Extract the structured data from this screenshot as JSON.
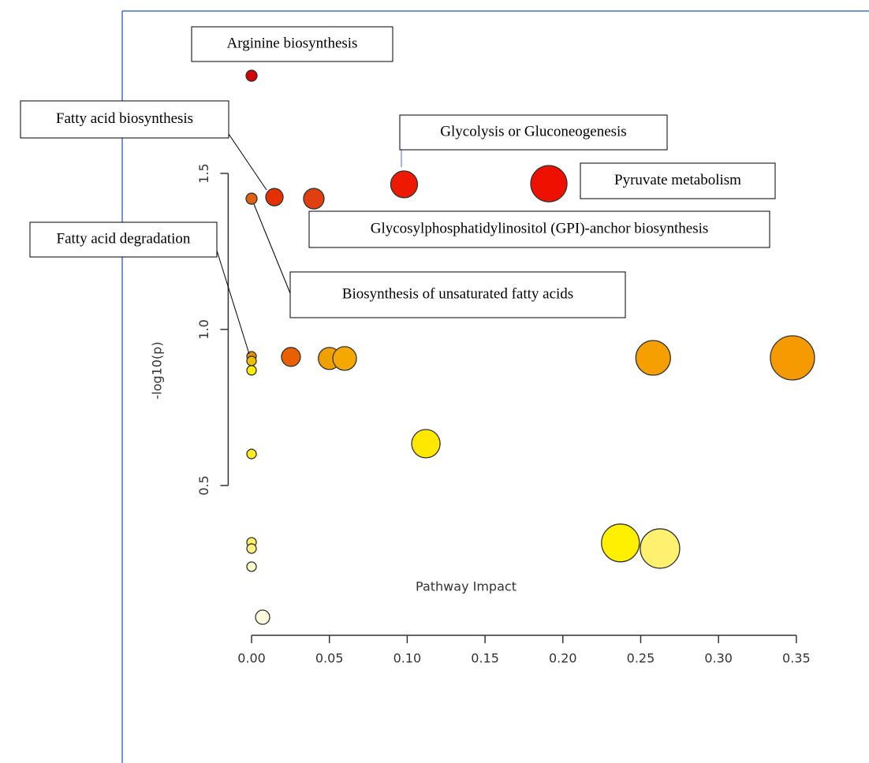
{
  "chart_data": {
    "type": "scatter",
    "xlabel": "Pathway Impact",
    "ylabel": "-log10(p)",
    "x": [
      0,
      0.0147,
      0.04,
      0.098,
      0.191,
      0,
      0,
      0,
      0,
      0.0253,
      0.05,
      0.0598,
      0.258,
      0.3475,
      0.112,
      0,
      0.237,
      0.2624,
      0,
      0,
      0,
      0.0071
    ],
    "values": [
      1.813,
      1.424,
      1.419,
      1.465,
      1.467,
      1.419,
      0.914,
      0.899,
      0.869,
      0.912,
      0.907,
      0.907,
      0.909,
      0.909,
      0.634,
      0.601,
      0.316,
      0.298,
      0.318,
      0.298,
      0.24,
      0.078
    ],
    "sizes": [
      7,
      11,
      13,
      17,
      23,
      7,
      6,
      6,
      6,
      12,
      14,
      15,
      22,
      28,
      18,
      6,
      24,
      25,
      6,
      6,
      6,
      9
    ],
    "colors": [
      "#d40000",
      "#e63000",
      "#e04010",
      "#ee1a00",
      "#ee1100",
      "#e06010",
      "#e09000",
      "#f0c000",
      "#ffee00",
      "#e86000",
      "#f0a000",
      "#f5a800",
      "#f5a000",
      "#f59a00",
      "#ffe800",
      "#ffee20",
      "#fff000",
      "#fff070",
      "#ffee66",
      "#fff080",
      "#ffffcc",
      "#ffffe0"
    ],
    "xlim": [
      -0.015,
      0.36
    ],
    "ylim": [
      0.02,
      1.85
    ],
    "xticks": [
      {
        "value": 0,
        "label": "0.00"
      },
      {
        "value": 0.05,
        "label": "0.05"
      },
      {
        "value": 0.1,
        "label": "0.10"
      },
      {
        "value": 0.15,
        "label": "0.15"
      },
      {
        "value": 0.2,
        "label": "0.20"
      },
      {
        "value": 0.25,
        "label": "0.25"
      },
      {
        "value": 0.3,
        "label": "0.30"
      },
      {
        "value": 0.35,
        "label": "0.35"
      }
    ],
    "yticks": [
      0.5,
      {
        "value": 1,
        "label": "1.0"
      },
      1.5
    ],
    "annotations": [
      "Arginine biosynthesis",
      "Fatty acid biosynthesis",
      "Glycolysis or Gluconeogenesis",
      "Pyruvate metabolism",
      "Glycosylphosphatidylinositol (GPI)-anchor biosynthesis",
      "Biosynthesis of unsaturated fatty acids",
      "Fatty acid degradation"
    ]
  }
}
